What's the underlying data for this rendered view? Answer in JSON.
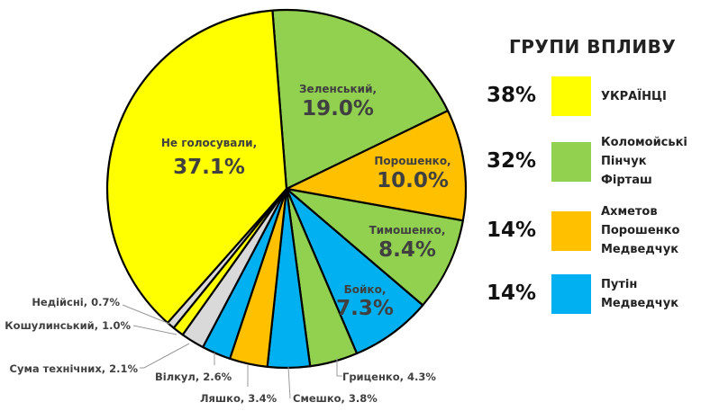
{
  "chart_data": {
    "type": "pie",
    "title": "",
    "slices": [
      {
        "label": "Зеленський",
        "value": 19.0,
        "display": "19.0%",
        "color": "#92D050",
        "placement": "inside"
      },
      {
        "label": "Порошенко",
        "value": 10.0,
        "display": "10.0%",
        "color": "#FFC000",
        "placement": "inside"
      },
      {
        "label": "Тимошенко",
        "value": 8.4,
        "display": "8.4%",
        "color": "#92D050",
        "placement": "inside"
      },
      {
        "label": "Бойко",
        "value": 7.3,
        "display": "7.3%",
        "color": "#00B0F0",
        "placement": "inside"
      },
      {
        "label": "Гриценко",
        "value": 4.3,
        "display": "Гриценко, 4.3%",
        "color": "#92D050",
        "placement": "outside"
      },
      {
        "label": "Смешко",
        "value": 3.8,
        "display": "Смешко, 3.8%",
        "color": "#00B0F0",
        "placement": "outside"
      },
      {
        "label": "Ляшко",
        "value": 3.4,
        "display": "Ляшко, 3.4%",
        "color": "#FFC000",
        "placement": "outside"
      },
      {
        "label": "Вілкул",
        "value": 2.6,
        "display": "Вілкул, 2.6%",
        "color": "#00B0F0",
        "placement": "outside"
      },
      {
        "label": "Сума технічних",
        "value": 2.1,
        "display": "Сума технічних, 2.1%",
        "color": "#D9D9D9",
        "placement": "outside"
      },
      {
        "label": "Кошулинський",
        "value": 1.0,
        "display": "Кошулинський, 1.0%",
        "color": "#FFFF00",
        "placement": "outside"
      },
      {
        "label": "Недійсні",
        "value": 0.7,
        "display": "Недійсні, 0.7%",
        "color": "#D9D9D9",
        "placement": "outside"
      },
      {
        "label": "Не голосували",
        "value": 37.1,
        "display": "37.1%",
        "color": "#FFFF00",
        "placement": "inside"
      }
    ],
    "legend": {
      "title": "ГРУПИ ВПЛИВУ",
      "placement": "right",
      "entries": [
        {
          "percent": "38%",
          "color": "#FFFF00",
          "names": [
            "УКРАЇНЦІ"
          ]
        },
        {
          "percent": "32%",
          "color": "#92D050",
          "names": [
            "Коломойські",
            "Пінчук",
            "Фірташ"
          ]
        },
        {
          "percent": "14%",
          "color": "#FFC000",
          "names": [
            "Ахметов",
            "Порошенко",
            "Медведчук"
          ]
        },
        {
          "percent": "14%",
          "color": "#00B0F0",
          "names": [
            "Путін",
            "Медведчук"
          ]
        }
      ]
    }
  }
}
